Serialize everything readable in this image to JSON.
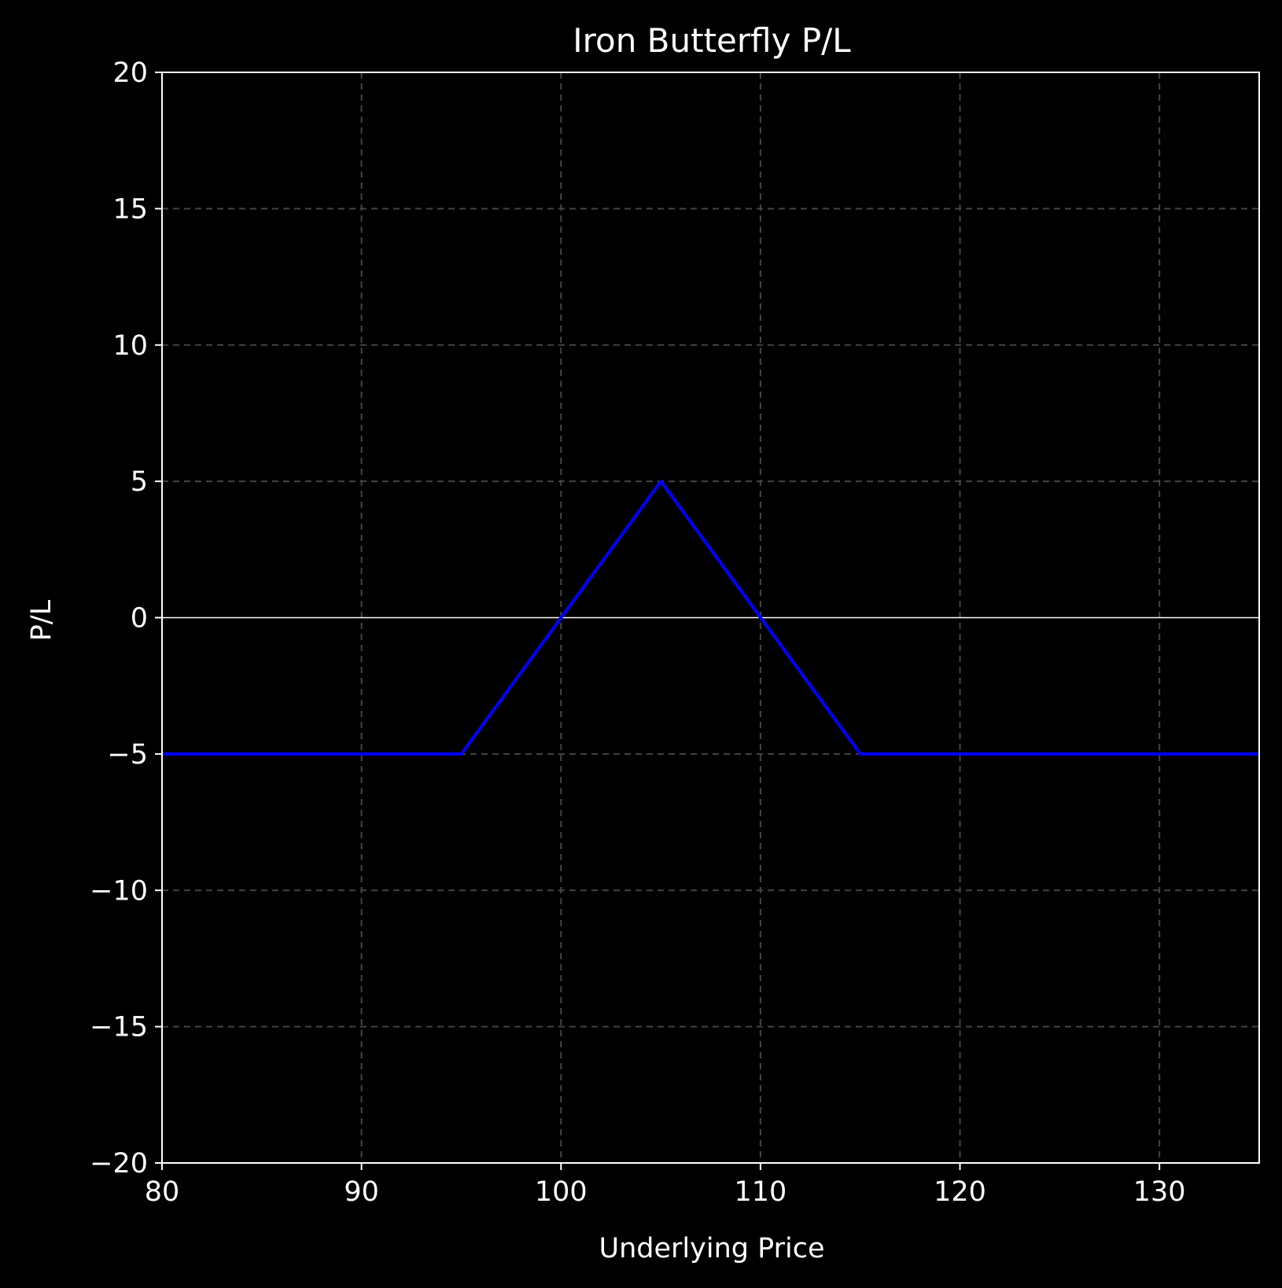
{
  "chart_data": {
    "type": "line",
    "title": "Iron Butterfly P/L",
    "xlabel": "Underlying Price",
    "ylabel": "P/L",
    "xlim": [
      80,
      135
    ],
    "ylim": [
      -20,
      20
    ],
    "xticks": [
      80,
      90,
      100,
      110,
      120,
      130
    ],
    "yticks": [
      -20,
      -15,
      -10,
      -5,
      0,
      5,
      10,
      15,
      20
    ],
    "grid": true,
    "zero_line": true,
    "series": [
      {
        "color": "#0000ff",
        "x": [
          80,
          95,
          105,
          115,
          135
        ],
        "y": [
          -5,
          -5,
          5,
          -5,
          -5
        ]
      }
    ],
    "colors": {
      "background": "#000000",
      "axes": "#ffffff",
      "grid": "#444444"
    }
  }
}
